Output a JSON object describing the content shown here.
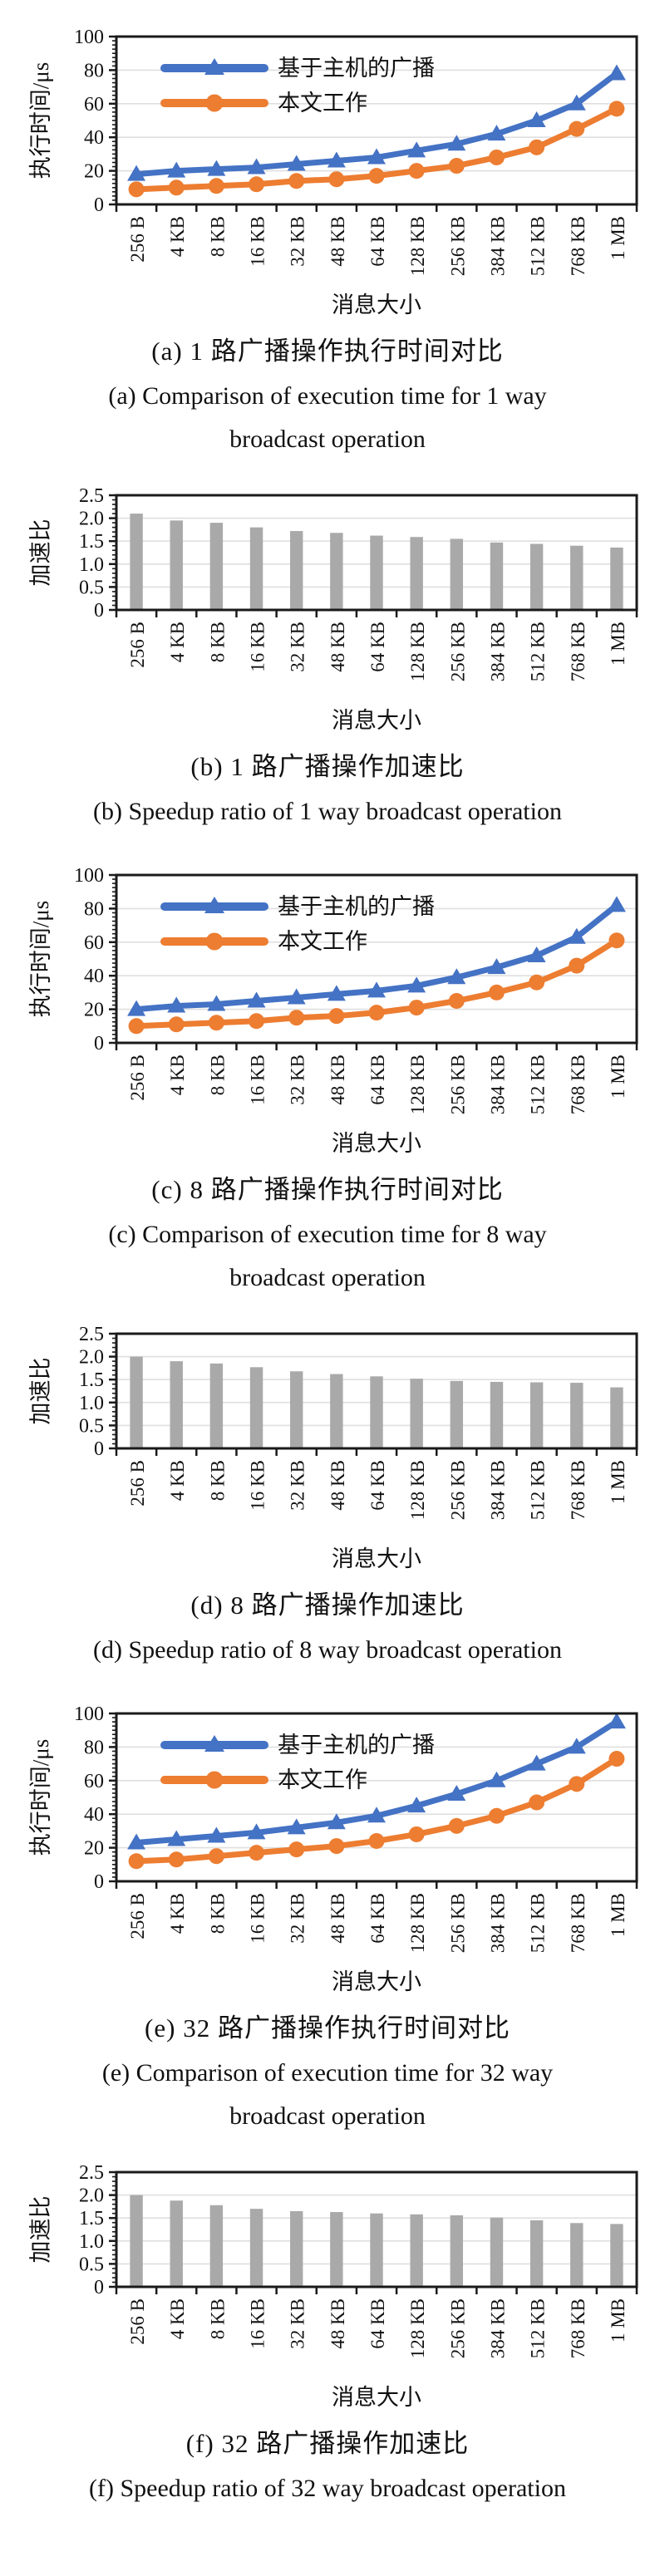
{
  "page": {
    "background": "#ffffff"
  },
  "colors": {
    "series_host": "#4472C4",
    "series_ours": "#ED7D31",
    "bar": "#A9A9A9",
    "grid": "#DFDFDF",
    "axis": "#1A1A1A",
    "text": "#111111"
  },
  "x_axis": {
    "label": "消息大小",
    "categories": [
      "256 B",
      "4 KB",
      "8 KB",
      "16 KB",
      "32 KB",
      "48 KB",
      "64 KB",
      "128 KB",
      "256 KB",
      "384 KB",
      "512 KB",
      "768 KB",
      "1 MB"
    ]
  },
  "legend": {
    "items": [
      "基于主机的广播",
      "本文工作"
    ]
  },
  "chart_data": [
    {
      "id": "a",
      "type": "line",
      "caption_zh": "(a) 1 路广播操作执行时间对比",
      "caption_en": "(a) Comparison of execution time for 1 way",
      "caption_en2": "broadcast operation",
      "xlabel": "消息大小",
      "ylabel": "执行时间/μs",
      "ylim": [
        0,
        100
      ],
      "yminor": 2.5,
      "yticks": [
        {
          "v": 0,
          "label": "0"
        },
        {
          "v": 20,
          "label": "20"
        },
        {
          "v": 40,
          "label": "40"
        },
        {
          "v": 60,
          "label": "60"
        },
        {
          "v": 80,
          "label": "80"
        },
        {
          "v": 100,
          "label": "100"
        }
      ],
      "categories": [
        "256 B",
        "4 KB",
        "8 KB",
        "16 KB",
        "32 KB",
        "48 KB",
        "64 KB",
        "128 KB",
        "256 KB",
        "384 KB",
        "512 KB",
        "768 KB",
        "1 MB"
      ],
      "legend_position": "top-left-inside",
      "grid": true,
      "series": [
        {
          "name": "基于主机的广播",
          "marker": "triangle",
          "color": "#4472C4",
          "values": [
            18,
            20,
            21,
            22,
            24,
            26,
            28,
            32,
            36,
            42,
            50,
            60,
            78
          ]
        },
        {
          "name": "本文工作",
          "marker": "circle",
          "color": "#ED7D31",
          "values": [
            9,
            10,
            11,
            12,
            14,
            15,
            17,
            20,
            23,
            28,
            34,
            45,
            57
          ]
        }
      ]
    },
    {
      "id": "b",
      "type": "bar",
      "caption_zh": "(b) 1 路广播操作加速比",
      "caption_en": "(b) Speedup ratio of 1 way broadcast operation",
      "xlabel": "消息大小",
      "ylabel": "加速比",
      "ylim": [
        0,
        2.5
      ],
      "yminor": 0.1,
      "yticks": [
        {
          "v": 0,
          "label": "0"
        },
        {
          "v": 0.5,
          "label": "0.5"
        },
        {
          "v": 1,
          "label": "1.0"
        },
        {
          "v": 1.5,
          "label": "1.5"
        },
        {
          "v": 2,
          "label": "2.0"
        },
        {
          "v": 2.5,
          "label": "2.5"
        }
      ],
      "categories": [
        "256 B",
        "4 KB",
        "8 KB",
        "16 KB",
        "32 KB",
        "48 KB",
        "64 KB",
        "128 KB",
        "256 KB",
        "384 KB",
        "512 KB",
        "768 KB",
        "1 MB"
      ],
      "grid": true,
      "values": [
        2.1,
        1.95,
        1.9,
        1.8,
        1.72,
        1.68,
        1.62,
        1.59,
        1.55,
        1.47,
        1.44,
        1.4,
        1.36
      ]
    },
    {
      "id": "c",
      "type": "line",
      "caption_zh": "(c) 8 路广播操作执行时间对比",
      "caption_en": "(c) Comparison of execution time for 8 way",
      "caption_en2": "broadcast operation",
      "xlabel": "消息大小",
      "ylabel": "执行时间/μs",
      "ylim": [
        0,
        100
      ],
      "yminor": 2.5,
      "yticks": [
        {
          "v": 0,
          "label": "0"
        },
        {
          "v": 20,
          "label": "20"
        },
        {
          "v": 40,
          "label": "40"
        },
        {
          "v": 60,
          "label": "60"
        },
        {
          "v": 80,
          "label": "80"
        },
        {
          "v": 100,
          "label": "100"
        }
      ],
      "categories": [
        "256 B",
        "4 KB",
        "8 KB",
        "16 KB",
        "32 KB",
        "48 KB",
        "64 KB",
        "128 KB",
        "256 KB",
        "384 KB",
        "512 KB",
        "768 KB",
        "1 MB"
      ],
      "legend_position": "top-left-inside",
      "grid": true,
      "series": [
        {
          "name": "基于主机的广播",
          "marker": "triangle",
          "color": "#4472C4",
          "values": [
            20,
            22,
            23,
            25,
            27,
            29,
            31,
            34,
            39,
            45,
            52,
            63,
            82
          ]
        },
        {
          "name": "本文工作",
          "marker": "circle",
          "color": "#ED7D31",
          "values": [
            10,
            11,
            12,
            13,
            15,
            16,
            18,
            21,
            25,
            30,
            36,
            46,
            61
          ]
        }
      ]
    },
    {
      "id": "d",
      "type": "bar",
      "caption_zh": "(d) 8 路广播操作加速比",
      "caption_en": "(d) Speedup ratio of 8 way broadcast operation",
      "xlabel": "消息大小",
      "ylabel": "加速比",
      "ylim": [
        0,
        2.5
      ],
      "yminor": 0.1,
      "yticks": [
        {
          "v": 0,
          "label": "0"
        },
        {
          "v": 0.5,
          "label": "0.5"
        },
        {
          "v": 1,
          "label": "1.0"
        },
        {
          "v": 1.5,
          "label": "1.5"
        },
        {
          "v": 2,
          "label": "2.0"
        },
        {
          "v": 2.5,
          "label": "2.5"
        }
      ],
      "categories": [
        "256 B",
        "4 KB",
        "8 KB",
        "16 KB",
        "32 KB",
        "48 KB",
        "64 KB",
        "128 KB",
        "256 KB",
        "384 KB",
        "512 KB",
        "768 KB",
        "1 MB"
      ],
      "grid": true,
      "values": [
        2.0,
        1.9,
        1.85,
        1.77,
        1.68,
        1.62,
        1.57,
        1.52,
        1.47,
        1.45,
        1.44,
        1.43,
        1.33
      ]
    },
    {
      "id": "e",
      "type": "line",
      "caption_zh": "(e) 32 路广播操作执行时间对比",
      "caption_en": "(e) Comparison of execution time for 32 way",
      "caption_en2": "broadcast operation",
      "xlabel": "消息大小",
      "ylabel": "执行时间/μs",
      "ylim": [
        0,
        100
      ],
      "yminor": 2.5,
      "yticks": [
        {
          "v": 0,
          "label": "0"
        },
        {
          "v": 20,
          "label": "20"
        },
        {
          "v": 40,
          "label": "40"
        },
        {
          "v": 60,
          "label": "60"
        },
        {
          "v": 80,
          "label": "80"
        },
        {
          "v": 100,
          "label": "100"
        }
      ],
      "categories": [
        "256 B",
        "4 KB",
        "8 KB",
        "16 KB",
        "32 KB",
        "48 KB",
        "64 KB",
        "128 KB",
        "256 KB",
        "384 KB",
        "512 KB",
        "768 KB",
        "1 MB"
      ],
      "legend_position": "top-left-inside",
      "grid": true,
      "series": [
        {
          "name": "基于主机的广播",
          "marker": "triangle",
          "color": "#4472C4",
          "values": [
            23,
            25,
            27,
            29,
            32,
            35,
            39,
            45,
            52,
            60,
            70,
            80,
            95
          ]
        },
        {
          "name": "本文工作",
          "marker": "circle",
          "color": "#ED7D31",
          "values": [
            12,
            13,
            15,
            17,
            19,
            21,
            24,
            28,
            33,
            39,
            47,
            58,
            73
          ]
        }
      ]
    },
    {
      "id": "f",
      "type": "bar",
      "caption_zh": "(f) 32 路广播操作加速比",
      "caption_en": "(f) Speedup ratio of 32 way broadcast operation",
      "xlabel": "消息大小",
      "ylabel": "加速比",
      "ylim": [
        0,
        2.5
      ],
      "yminor": 0.1,
      "yticks": [
        {
          "v": 0,
          "label": "0"
        },
        {
          "v": 0.5,
          "label": "0.5"
        },
        {
          "v": 1,
          "label": "1.0"
        },
        {
          "v": 1.5,
          "label": "1.5"
        },
        {
          "v": 2,
          "label": "2.0"
        },
        {
          "v": 2.5,
          "label": "2.5"
        }
      ],
      "categories": [
        "256 B",
        "4 KB",
        "8 KB",
        "16 KB",
        "32 KB",
        "48 KB",
        "64 KB",
        "128 KB",
        "256 KB",
        "384 KB",
        "512 KB",
        "768 KB",
        "1 MB"
      ],
      "grid": true,
      "values": [
        2.0,
        1.88,
        1.78,
        1.7,
        1.65,
        1.63,
        1.6,
        1.58,
        1.56,
        1.51,
        1.45,
        1.39,
        1.37
      ]
    }
  ]
}
